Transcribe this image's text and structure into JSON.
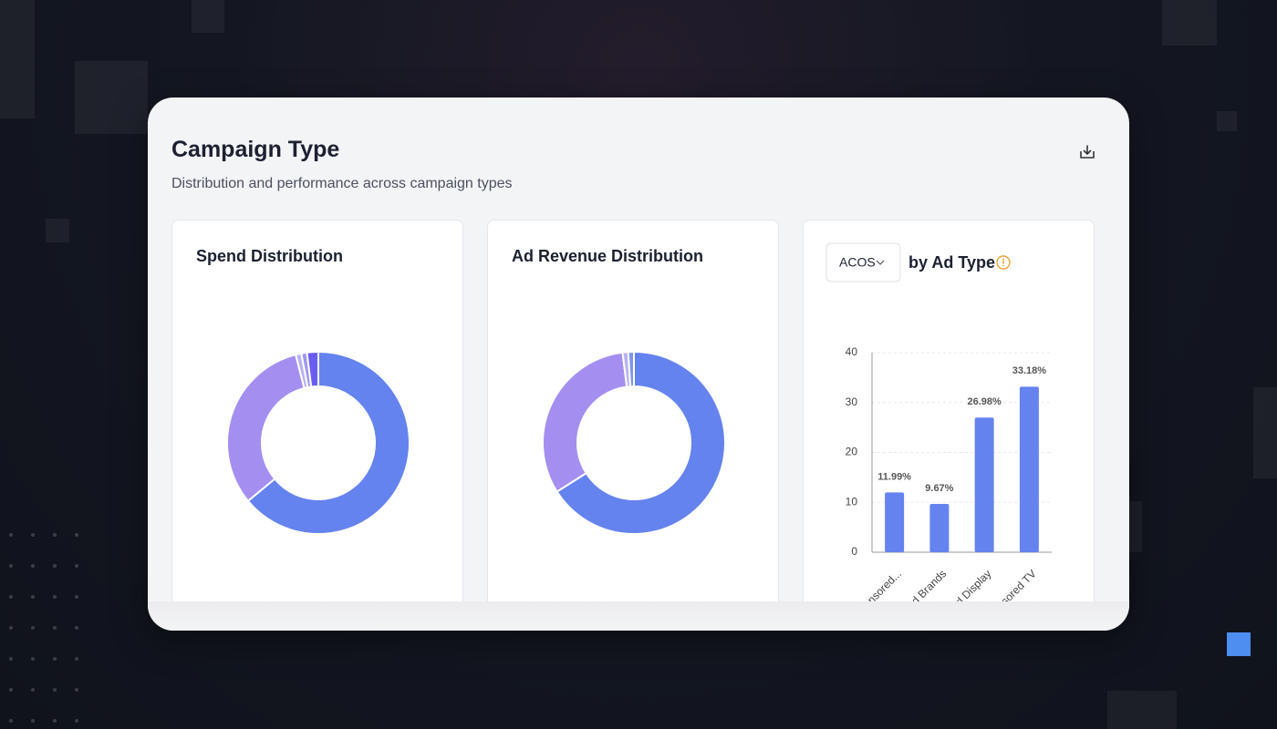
{
  "header": {
    "title": "Campaign Type",
    "subtitle": "Distribution and performance across campaign types"
  },
  "chart_data": [
    {
      "type": "pie",
      "title": "Spend Distribution",
      "values": [
        64,
        32,
        1,
        1,
        2
      ],
      "colors": [
        "#6583ee",
        "#a48ff1",
        "#b9b3f2",
        "#9f97f0",
        "#6a5cf0"
      ],
      "donut": true
    },
    {
      "type": "pie",
      "title": "Ad Revenue Distribution",
      "values": [
        66,
        32,
        1,
        1
      ],
      "colors": [
        "#6583ee",
        "#a48ff1",
        "#b9b3f2",
        "#7f95ee"
      ],
      "donut": true
    },
    {
      "type": "bar",
      "metric": "ACOS",
      "title": "by Ad Type",
      "categories": [
        "Sponsored...",
        "Sponsored Brands",
        "Sponsored Display",
        "Sponsored TV"
      ],
      "values": [
        11.99,
        9.67,
        26.98,
        33.18
      ],
      "value_labels": [
        "11.99%",
        "9.67%",
        "26.98%",
        "33.18%"
      ],
      "color": "#6583ee",
      "ylim": [
        0,
        40
      ],
      "yticks": [
        0,
        10,
        20,
        30,
        40
      ],
      "grid": true
    }
  ]
}
